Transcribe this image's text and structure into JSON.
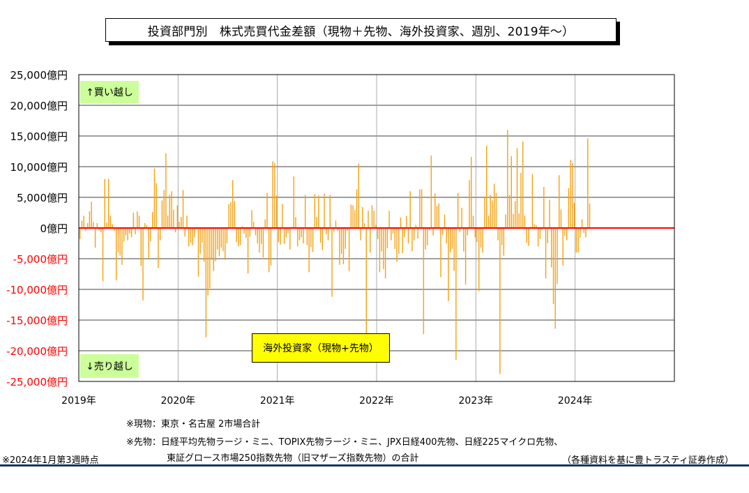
{
  "title": "投資部門別　株式売買代金差額（現物＋先物、海外投資家、週別、2019年～）",
  "labels": {
    "buy": "↑買い越し",
    "sell": "↓売り越し",
    "series_box": "海外投資家（現物+先物）"
  },
  "notes": {
    "genbutsu": "※現物：東京・名古屋 2市場合計",
    "sakimono_1": "※先物：日経平均先物ラージ・ミニ、TOPIX先物ラージ・ミニ、JPX日経400先物、日経225マイクロ先物、",
    "sakimono_2": "東証グロース市場250指数先物（旧マザーズ指数先物）の合計",
    "as_of": "※2024年1月第3週時点",
    "source": "（各種資料を基に豊トラスティ証券作成）"
  },
  "colors": {
    "bar": "#f5a010",
    "zero_line": "#ff0000",
    "negative_tick": "#ff0000",
    "label_bg": "#ccff99",
    "series_box_bg": "#ffff00"
  },
  "chart_data": {
    "type": "bar",
    "title": "投資部門別　株式売買代金差額（現物＋先物、海外投資家、週別、2019年～）",
    "series": [
      {
        "name": "海外投資家（現物+先物）",
        "unit": "億円"
      }
    ],
    "xlim": [
      2019,
      2025
    ],
    "ylim": [
      -25000,
      25000
    ],
    "y_ticks": [
      25000,
      20000,
      15000,
      10000,
      5000,
      0,
      -5000,
      -10000,
      -15000,
      -20000,
      -25000
    ],
    "y_tick_labels": [
      "25,000億円",
      "20,000億円",
      "15,000億円",
      "10,000億円",
      "5,000億円",
      "0億円",
      "-5,000億円",
      "-10,000億円",
      "-15,000億円",
      "-20,000億円",
      "-25,000億円"
    ],
    "x_tick_labels": [
      "2019年",
      "2020年",
      "2021年",
      "2022年",
      "2023年",
      "2024年"
    ],
    "grid": true,
    "weekly_values": [
      -1800,
      1200,
      2000,
      -500,
      800,
      2700,
      4300,
      1000,
      -3200,
      800,
      -400,
      -700,
      -8700,
      8000,
      900,
      8000,
      2000,
      600,
      -500,
      -8500,
      -4000,
      -4500,
      -6000,
      -2200,
      -1200,
      -2000,
      -900,
      -1500,
      2500,
      -1000,
      2700,
      2000,
      -6200,
      -11800,
      800,
      500,
      -5000,
      -2200,
      2600,
      9700,
      7300,
      -6500,
      -2000,
      4500,
      6200,
      12200,
      2000,
      5400,
      6000,
      3000,
      -700,
      3700,
      1000,
      1800,
      6200,
      -1400,
      2000,
      -3000,
      -2400,
      -2800,
      -1500,
      -200,
      -7900,
      -4200,
      -2400,
      -5500,
      -17800,
      -11000,
      -9800,
      -5200,
      -7000,
      -5400,
      -3500,
      -4600,
      -3200,
      -3800,
      -5200,
      -2500,
      3900,
      4200,
      7800,
      4400,
      -2300,
      -3000,
      -2800,
      300,
      -900,
      -1600,
      -7400,
      -1400,
      2900,
      1000,
      -1200,
      -2500,
      -4000,
      -2600,
      -4800,
      1400,
      5700,
      -7200,
      -6100,
      10900,
      10600,
      5300,
      -2300,
      -2700,
      3900,
      -2600,
      -1500,
      -800,
      -3500,
      200,
      8400,
      1800,
      -3000,
      -2000,
      -1500,
      -2500,
      5400,
      -2800,
      -7200,
      -3100,
      -3900,
      5500,
      1800,
      5300,
      -2400,
      -3600,
      5600,
      -1000,
      -2000,
      5400,
      -11200,
      -600,
      1200,
      -500,
      -6000,
      -4200,
      -5900,
      -3400,
      -500,
      -7000,
      3800,
      3700,
      2900,
      6300,
      10500,
      -2000,
      3400,
      800,
      -19500,
      2800,
      -4000,
      3700,
      2800,
      500,
      -1800,
      -7200,
      -3800,
      -6700,
      -8200,
      -3300,
      2800,
      -2000,
      -900,
      -3400,
      -5500,
      -4200,
      1700,
      -4100,
      -1500,
      2000,
      -2500,
      6000,
      -3800,
      -2000,
      500,
      -1700,
      6300,
      6300,
      -17300,
      -3500,
      -2800,
      -400,
      11800,
      -1200,
      5600,
      3600,
      4000,
      -8000,
      -1100,
      2200,
      -2500,
      -11900,
      -4000,
      -3400,
      -7000,
      -21500,
      5700,
      -600,
      3300,
      -3800,
      -9200,
      -1200,
      7800,
      11600,
      2000,
      -1500,
      -2300,
      -10300,
      -3200,
      -4000,
      4900,
      13400,
      2000,
      5400,
      4500,
      7200,
      5700,
      -2000,
      -23800,
      -2800,
      -4500,
      2200,
      16000,
      5400,
      11700,
      2300,
      4400,
      13000,
      2400,
      9000,
      14100,
      2000,
      -2400,
      -2900,
      200,
      8800,
      600,
      500,
      -3000,
      -1800,
      -300,
      6700,
      -8200,
      -2500,
      4600,
      -6400,
      -12400,
      -16400,
      -9100,
      8600,
      3000,
      -6100,
      -1300,
      -2000,
      6500,
      11100,
      10600,
      4100,
      -4000,
      -4000,
      -1600,
      1400,
      -800,
      -1500,
      14600,
      4000
    ]
  }
}
